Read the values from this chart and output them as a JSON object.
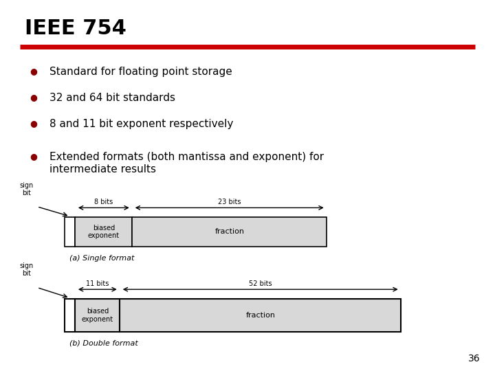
{
  "title": "IEEE 754",
  "red_line_color": "#cc0000",
  "bg_color": "#ffffff",
  "bullets": [
    "Standard for floating point storage",
    "32 and 64 bit standards",
    "8 and 11 bit exponent respectively",
    "Extended formats (both mantissa and exponent) for\nintermediate results"
  ],
  "bullet_color": "#8B0000",
  "text_color": "#000000",
  "diagram_bg": "#d8d8d8",
  "diagram_border": "#000000",
  "single_format_label": "(a) Single format",
  "double_format_label": "(b) Double format",
  "page_number": "36"
}
